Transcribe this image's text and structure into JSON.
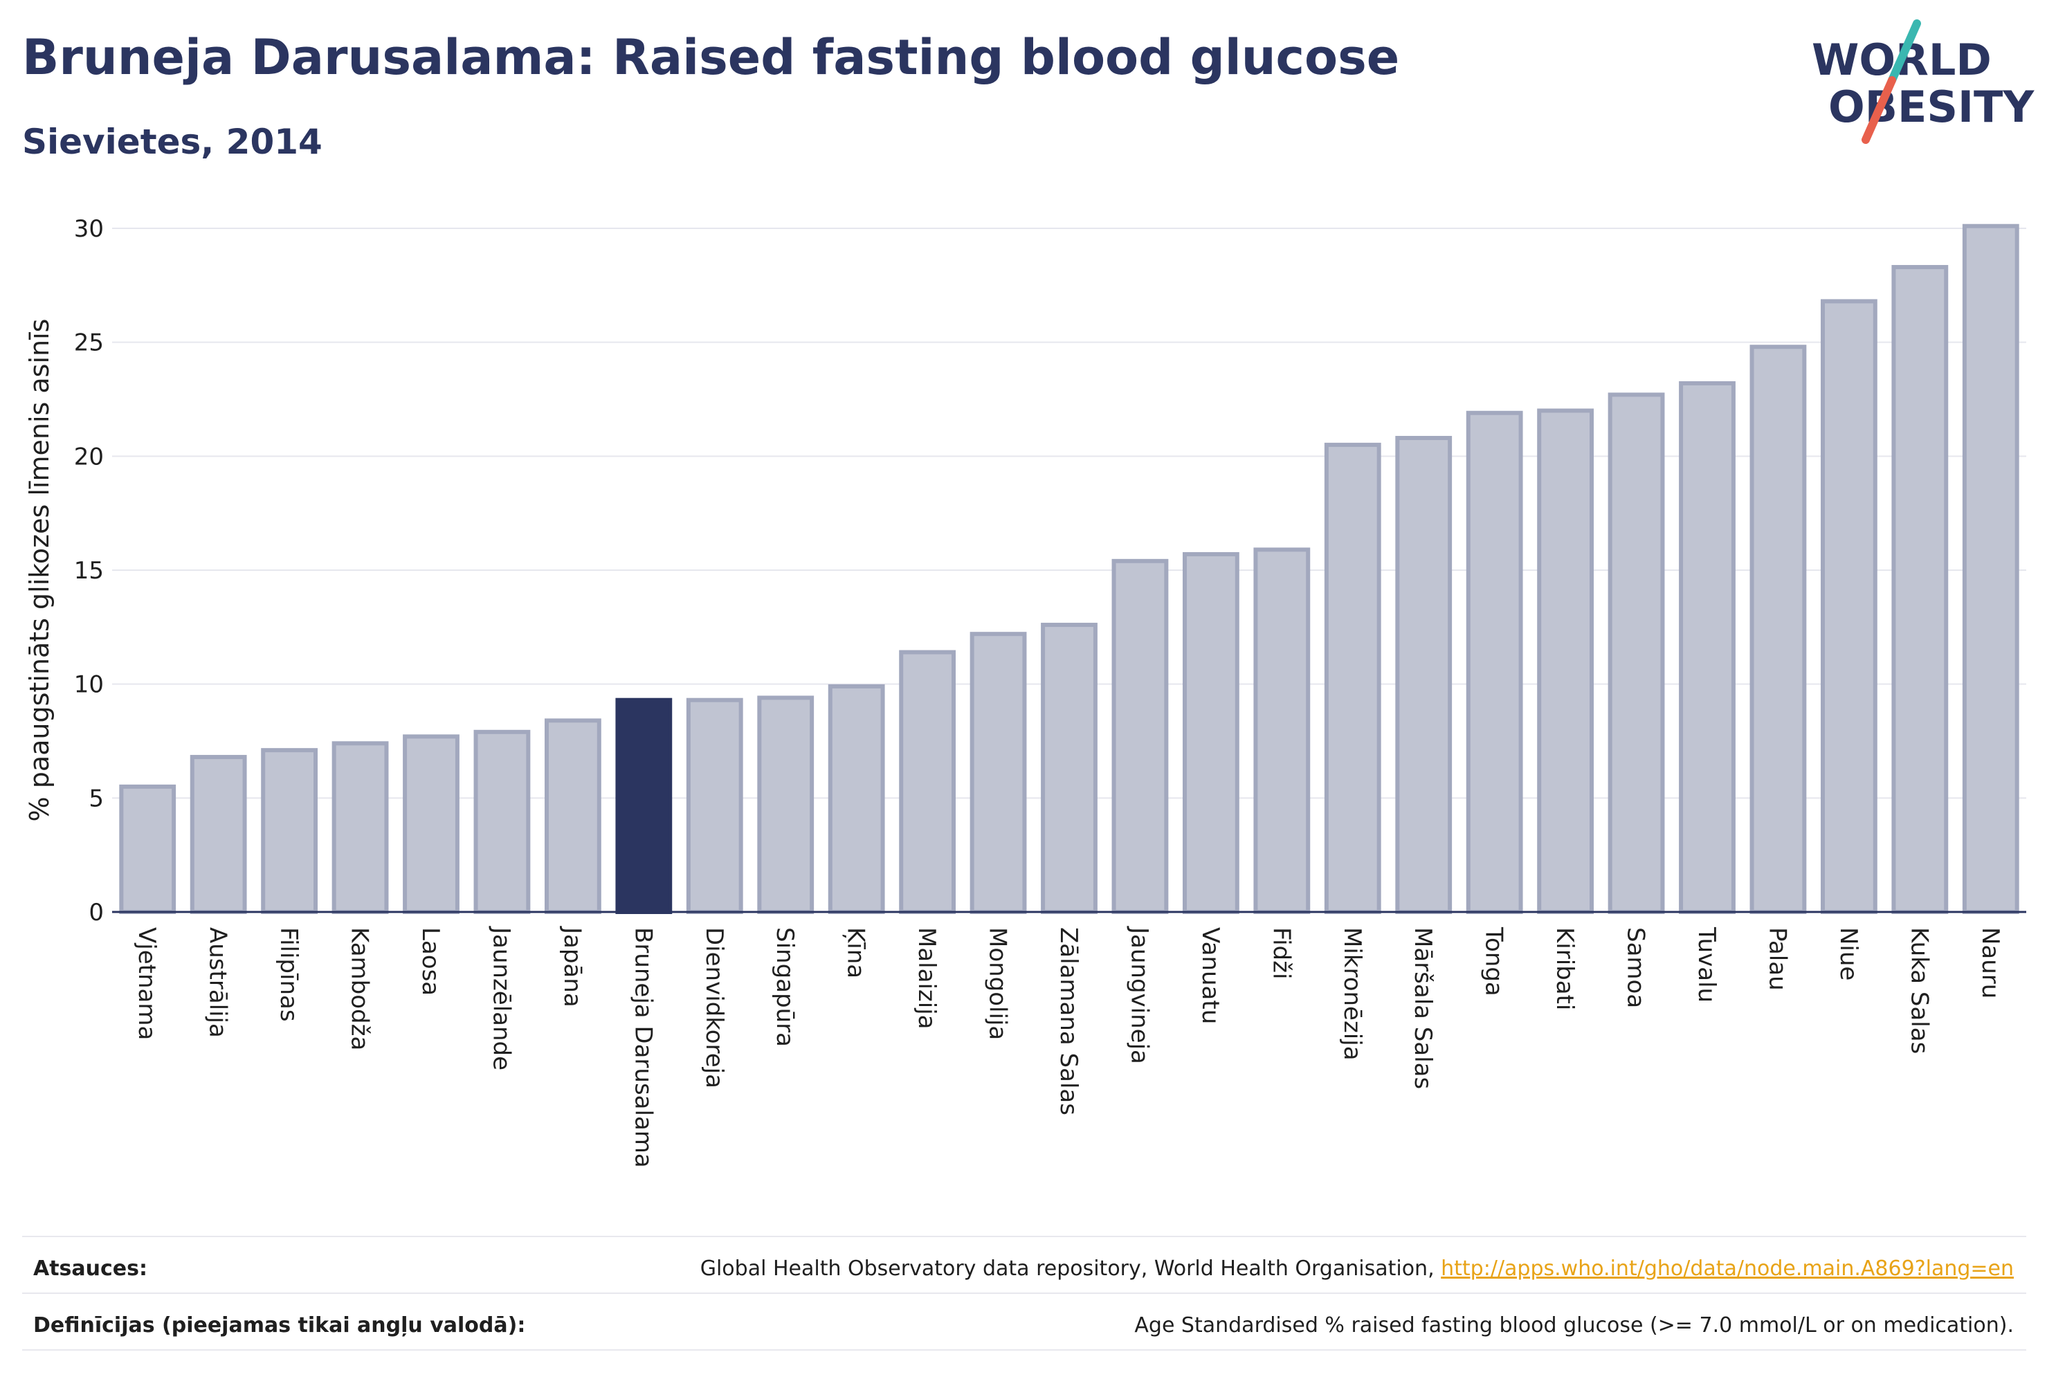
{
  "header": {
    "title": "Bruneja Darusalama: Raised fasting blood glucose",
    "subtitle": "Sievietes, 2014"
  },
  "logo": {
    "line1": "WORLD",
    "line2": "OBESITY",
    "colors": {
      "text": "#2b3560",
      "slash_top": "#3ab7b0",
      "slash_bottom": "#e8604c"
    }
  },
  "chart_data": {
    "type": "bar",
    "ylabel": "% paaugstināts glikozes līmenis asinīs",
    "xlabel": "",
    "ylim": [
      0,
      30
    ],
    "yticks": [
      0,
      5,
      10,
      15,
      20,
      25,
      30
    ],
    "grid": true,
    "highlight_category": "Bruneja Darusalama",
    "colors": {
      "bar": "#c0c4d2",
      "bar_edge": "#a2a8be",
      "highlight": "#2b3560",
      "grid": "#e6e7ee",
      "axis": "#2b3560"
    },
    "categories": [
      "Vjetnama",
      "Austrālija",
      "Filipīnas",
      "Kambodža",
      "Laosa",
      "Jaunzēlande",
      "Japāna",
      "Bruneja Darusalama",
      "Dienvidkoreja",
      "Singapūra",
      "Ķīna",
      "Malaizija",
      "Mongolija",
      "Zālamana Salas",
      "Jaungvineja",
      "Vanuatu",
      "Fidži",
      "Mikronēzija",
      "Māršala Salas",
      "Tonga",
      "Kiribati",
      "Samoa",
      "Tuvalu",
      "Palau",
      "Niue",
      "Kuka Salas",
      "Nauru"
    ],
    "values": [
      5.5,
      6.8,
      7.1,
      7.4,
      7.7,
      7.9,
      8.4,
      9.3,
      9.3,
      9.4,
      9.9,
      11.4,
      12.2,
      12.6,
      15.4,
      15.7,
      15.9,
      20.5,
      20.8,
      21.9,
      22.0,
      22.7,
      23.2,
      24.8,
      26.8,
      28.3,
      30.1
    ]
  },
  "footer": {
    "sources_label": "Atsauces:",
    "sources_text": "Global Health Observatory data repository, World Health Organisation, ",
    "sources_link": "http://apps.who.int/gho/data/node.main.A869?lang=en",
    "definitions_label": "Definīcijas (pieejamas tikai angļu valodā):",
    "definitions_text": "Age Standardised % raised fasting blood glucose (>= 7.0 mmol/L or on medication)."
  }
}
